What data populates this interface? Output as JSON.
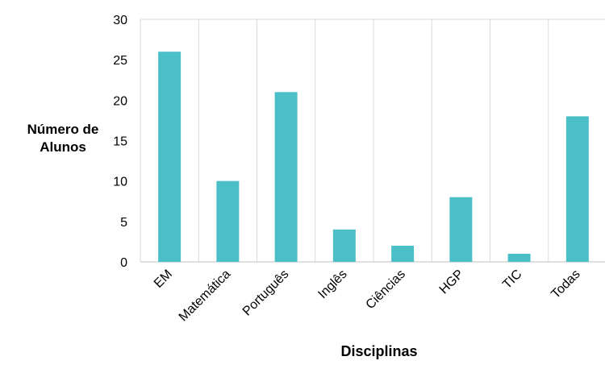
{
  "chart_data": {
    "type": "bar",
    "categories": [
      "EM",
      "Matemática",
      "Português",
      "Inglês",
      "Ciências",
      "HGP",
      "TIC",
      "Todas"
    ],
    "values": [
      26,
      10,
      21,
      4,
      2,
      8,
      1,
      18
    ],
    "ylabel_lines": [
      "Número de",
      "Alunos"
    ],
    "xlabel": "Disciplinas",
    "ylim": [
      0,
      30
    ],
    "yticks": [
      0,
      5,
      10,
      15,
      20,
      25,
      30
    ],
    "bar_color": "#4BBFC7",
    "grid": "vertical"
  }
}
